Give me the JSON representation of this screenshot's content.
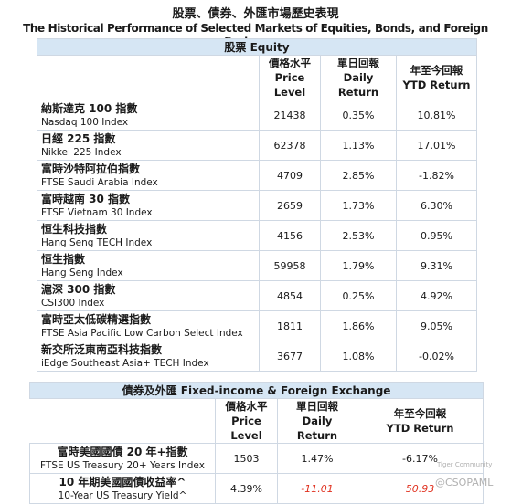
{
  "title_zh": "股票、債券、外匯市場歷史表現",
  "title_en": "The Historical Performance of Selected Markets of Equities, Bonds, and Foreign Exchanges",
  "equity": {
    "heading": "股票 Equity",
    "columns": [
      {
        "zh": "價格水平",
        "en": "Price Level"
      },
      {
        "zh": "單日回報",
        "en": "Daily Return"
      },
      {
        "zh": "年至今回報",
        "en": "YTD Return"
      }
    ],
    "rows": [
      {
        "zh": "納斯達克 100 指數",
        "en": "Nasdaq 100 Index",
        "price": "21438",
        "daily": "0.35%",
        "ytd": "10.81%"
      },
      {
        "zh": "日經 225 指數",
        "en": "Nikkei 225 Index",
        "price": "62378",
        "daily": "1.13%",
        "ytd": "17.01%"
      },
      {
        "zh": "富時沙特阿拉伯指數",
        "en": "FTSE Saudi Arabia Index",
        "price": "4709",
        "daily": "2.85%",
        "ytd": "-1.82%"
      },
      {
        "zh": "富時越南 30 指數",
        "en": "FTSE Vietnam 30 Index",
        "price": "2659",
        "daily": "1.73%",
        "ytd": "6.30%"
      },
      {
        "zh": "恒生科技指數",
        "en": "Hang Seng TECH Index",
        "price": "4156",
        "daily": "2.53%",
        "ytd": "0.95%"
      },
      {
        "zh": "恒生指數",
        "en": "Hang Seng Index",
        "price": "59958",
        "daily": "1.79%",
        "ytd": "9.31%"
      },
      {
        "zh": "滬深 300 指數",
        "en": "CSI300 Index",
        "price": "4854",
        "daily": "0.25%",
        "ytd": "4.92%"
      },
      {
        "zh": "富時亞太低碳精選指數",
        "en": "FTSE Asia Pacific Low Carbon Select Index",
        "price": "1811",
        "daily": "1.86%",
        "ytd": "9.05%"
      },
      {
        "zh": "新交所泛東南亞科技指數",
        "en": "iEdge Southeast Asia+ TECH Index",
        "price": "3677",
        "daily": "1.08%",
        "ytd": "-0.02%"
      }
    ]
  },
  "fixed_income": {
    "heading_zh": "債券及外匯",
    "heading_en": "Fixed-income & Foreign Exchange",
    "columns": [
      {
        "zh": "價格水平",
        "en": "Price Level"
      },
      {
        "zh": "單日回報",
        "en": "Daily Return"
      },
      {
        "zh": "年至今回報",
        "en": "YTD Return"
      }
    ],
    "rows": [
      {
        "zh": "富時美國國債 20 年+指數",
        "en": "FTSE US Treasury 20+ Years Index",
        "price": "1503",
        "daily": "1.47%",
        "ytd": "-6.17%"
      },
      {
        "zh": "10 年期美國國債收益率^",
        "en": "10-Year US Treasury Yield^",
        "price": "4.39%",
        "daily": "-11.01",
        "ytd": "50.93"
      }
    ]
  },
  "watermark": {
    "community": "Tiger Community",
    "handle": "@CSOPAML"
  }
}
